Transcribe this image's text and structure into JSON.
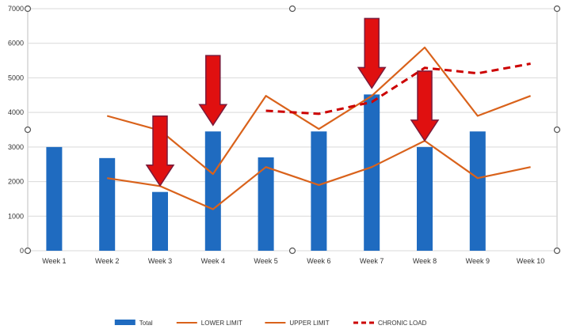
{
  "chart_data": {
    "type": "bar",
    "title": "",
    "xlabel": "",
    "ylabel": "",
    "categories": [
      "Week 1",
      "Week 2",
      "Week 3",
      "Week 4",
      "Week 5",
      "Week 6",
      "Week 7",
      "Week 8",
      "Week 9",
      "Week 10"
    ],
    "ylim": [
      0,
      7000
    ],
    "yticks": [
      0,
      1000,
      2000,
      3000,
      4000,
      5000,
      6000,
      7000
    ],
    "grid": true,
    "legend_position": "bottom",
    "series": [
      {
        "name": "Total",
        "type": "bar",
        "color": "#1f6bc0",
        "values": [
          3000,
          2680,
          1700,
          3450,
          2700,
          3450,
          4520,
          3000,
          3450,
          null
        ]
      },
      {
        "name": "LOWER LIMIT",
        "type": "line",
        "color": "#d9621b",
        "values": [
          null,
          2100,
          1870,
          1200,
          2420,
          1900,
          2420,
          3180,
          2100,
          2420
        ]
      },
      {
        "name": "UPPER LIMIT",
        "type": "line",
        "color": "#d9621b",
        "values": [
          null,
          3900,
          3480,
          2220,
          4480,
          3520,
          4480,
          5880,
          3900,
          4480
        ]
      },
      {
        "name": "CHRONIC LOAD",
        "type": "line",
        "style": "dashed",
        "color": "#cc0000",
        "values": [
          null,
          null,
          null,
          null,
          4050,
          3960,
          4300,
          5290,
          5130,
          5410
        ]
      }
    ],
    "annotations": [
      {
        "type": "down-arrow",
        "color": "#e01010",
        "category": "Week 3"
      },
      {
        "type": "down-arrow",
        "color": "#e01010",
        "category": "Week 4"
      },
      {
        "type": "down-arrow",
        "color": "#e01010",
        "category": "Week 7"
      },
      {
        "type": "down-arrow",
        "color": "#e01010",
        "category": "Week 8"
      }
    ]
  }
}
